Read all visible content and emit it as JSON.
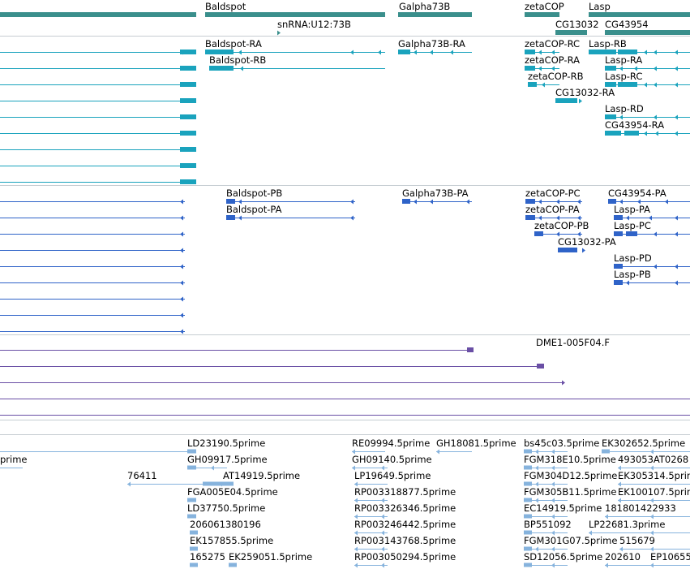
{
  "colors": {
    "gene": "#3a8f8c",
    "flybase_transcript": "#1aa3bd",
    "refseq_transcript": "#2f63c8",
    "est_cluster": "#6a4fa5",
    "est_read": "#86b3dd",
    "divider": "#c6cdd2"
  },
  "tracks": {
    "genes": {
      "features": [
        {
          "label": "Baldspot",
          "icon": "gene-glyph"
        },
        {
          "label": "snRNA:U12:73B",
          "icon": "gene-glyph"
        },
        {
          "label": "Galpha73B",
          "icon": "gene-glyph"
        },
        {
          "label": "zetaCOP",
          "icon": "gene-glyph"
        },
        {
          "label": "CG13032",
          "icon": "gene-glyph"
        },
        {
          "label": "Lasp",
          "icon": "gene-glyph"
        },
        {
          "label": "CG43954",
          "icon": "gene-glyph"
        }
      ]
    },
    "flybase_transcripts": {
      "features": [
        {
          "label": "Baldspot-RA"
        },
        {
          "label": "Baldspot-RB"
        },
        {
          "label": "Galpha73B-RA"
        },
        {
          "label": "zetaCOP-RC"
        },
        {
          "label": "zetaCOP-RA"
        },
        {
          "label": "zetaCOP-RB"
        },
        {
          "label": "CG13032-RA"
        },
        {
          "label": "Lasp-RB"
        },
        {
          "label": "Lasp-RA"
        },
        {
          "label": "Lasp-RC"
        },
        {
          "label": "Lasp-RD"
        },
        {
          "label": "CG43954-RA"
        }
      ]
    },
    "refseq_transcripts": {
      "features": [
        {
          "label": "Baldspot-PB"
        },
        {
          "label": "Baldspot-PA"
        },
        {
          "label": "Galpha73B-PA"
        },
        {
          "label": "zetaCOP-PC"
        },
        {
          "label": "zetaCOP-PA"
        },
        {
          "label": "zetaCOP-PB"
        },
        {
          "label": "CG13032-PA"
        },
        {
          "label": "CG43954-PA"
        },
        {
          "label": "Lasp-PA"
        },
        {
          "label": "Lasp-PC"
        },
        {
          "label": "Lasp-PD"
        },
        {
          "label": "Lasp-PB"
        }
      ]
    },
    "est_clusters": {
      "features": [
        {
          "label": "DME1-005F04.F"
        }
      ]
    },
    "est_reads": {
      "features": [
        {
          "label": "LD23190.5prime"
        },
        {
          "label": "RE09994.5prime"
        },
        {
          "label": "GH18081.5prime"
        },
        {
          "label": "bs45c03.5prime"
        },
        {
          "label": "EK302652.5prime"
        },
        {
          "label": "prime"
        },
        {
          "label": "GH09917.5prime"
        },
        {
          "label": "GH09140.5prime"
        },
        {
          "label": "FGM318E10.5prime"
        },
        {
          "label": "493053AT0268"
        },
        {
          "label": "76411"
        },
        {
          "label": "AT14919.5prime"
        },
        {
          "label": "LP19649.5prime"
        },
        {
          "label": "FGM304D12.5prime"
        },
        {
          "label": "EK305314.5prime"
        },
        {
          "label": "FGA005E04.5prime"
        },
        {
          "label": "RP003318877.5prime"
        },
        {
          "label": "FGM305B11.5prime"
        },
        {
          "label": "EK100107.5prime"
        },
        {
          "label": "LD37750.5prime"
        },
        {
          "label": "RP003326346.5prime"
        },
        {
          "label": "EC14919.5prime"
        },
        {
          "label": "181801422933"
        },
        {
          "label": "206061380196"
        },
        {
          "label": "RP003246442.5prime"
        },
        {
          "label": "BP551092"
        },
        {
          "label": "LP22681.3prime"
        },
        {
          "label": "EK157855.5prime"
        },
        {
          "label": "RP003143768.5prime"
        },
        {
          "label": "FGM301G07.5prime"
        },
        {
          "label": "515679"
        },
        {
          "label": "165275"
        },
        {
          "label": "EK259051.5prime"
        },
        {
          "label": "RP003050294.5prime"
        },
        {
          "label": "SD12056.5prime"
        },
        {
          "label": "202610"
        },
        {
          "label": "EP10655"
        }
      ]
    }
  }
}
